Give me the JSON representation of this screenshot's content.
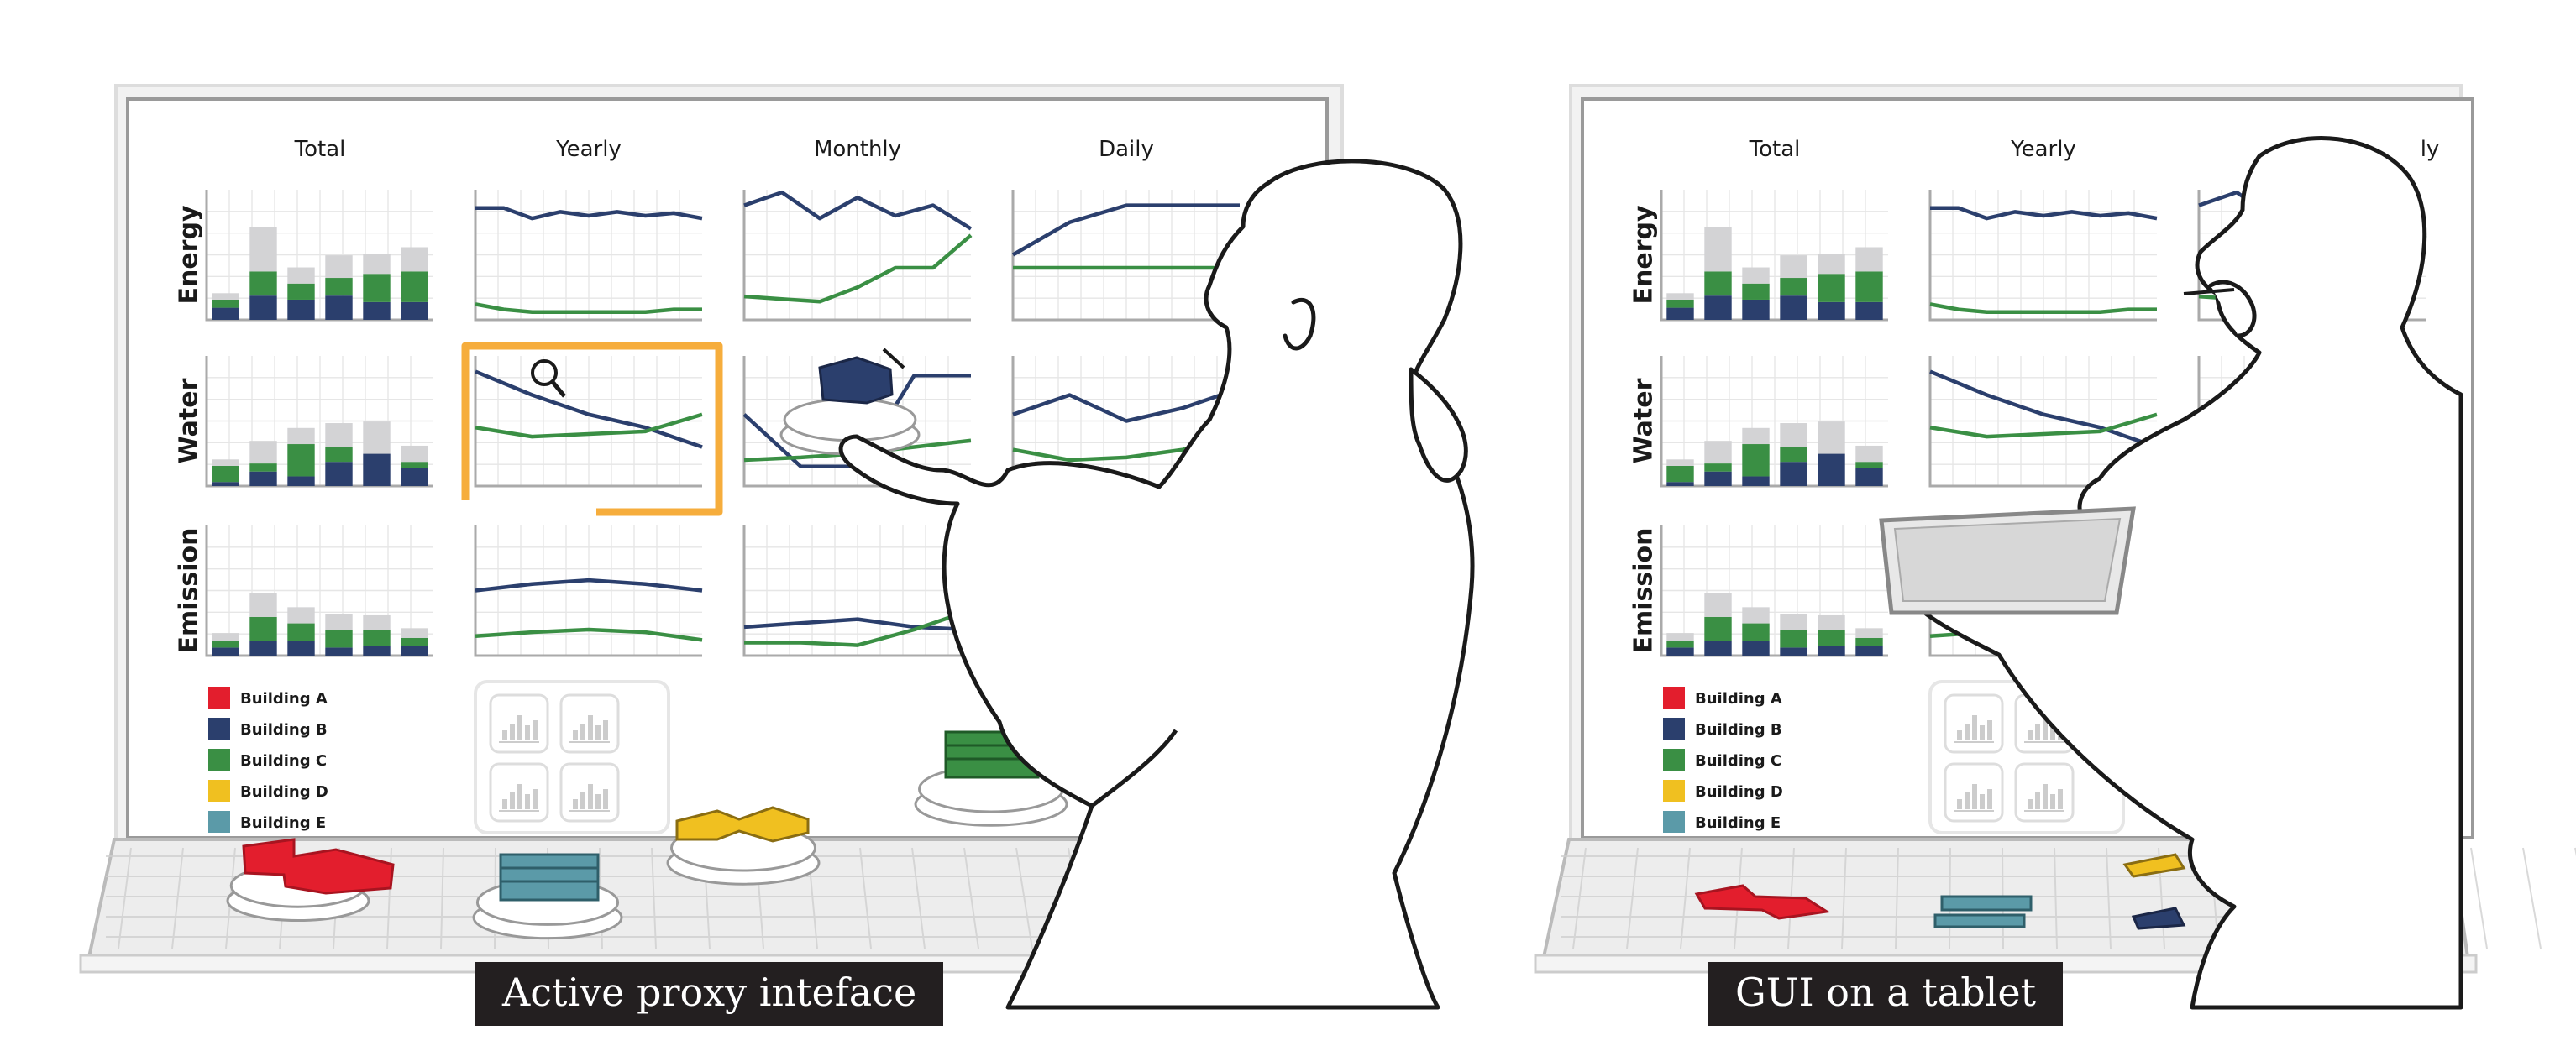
{
  "panels": [
    {
      "id": "left",
      "columns": [
        "Total",
        "Yearly",
        "Monthly",
        "Daily"
      ],
      "rows": [
        "Energy",
        "Water",
        "Emission"
      ],
      "legend": [
        "Building A",
        "Building B",
        "Building C",
        "Building D",
        "Building E"
      ],
      "caption": "Active proxy inteface"
    },
    {
      "id": "right",
      "columns": [
        "Total",
        "Yearly",
        "ly"
      ],
      "rows": [
        "Energy",
        "Water",
        "Emission"
      ],
      "legend": [
        "Building A",
        "Building B",
        "Building C",
        "Building D",
        "Building E"
      ],
      "caption": "GUI on a tablet"
    }
  ],
  "legend_colors": [
    "#e31e2d",
    "#2b3f6d",
    "#3a8f44",
    "#f0c020",
    "#5b9aa8"
  ],
  "colors": {
    "navy": "#2b3f6d",
    "green": "#3a8f44",
    "grey_bar": "#d3d3d5",
    "highlight": "#f6ad3c",
    "line": "#1a1a1a"
  },
  "chart_data": [
    {
      "type": "bar",
      "row": "Energy",
      "categories": [
        "1",
        "2",
        "3",
        "4",
        "5",
        "6"
      ],
      "series": [
        {
          "values": [
            0.15,
            0.3,
            0.25,
            0.3,
            0.22,
            0.22
          ]
        },
        {
          "values": [
            0.1,
            0.3,
            0.2,
            0.22,
            0.35,
            0.38
          ]
        },
        {
          "values": [
            0.08,
            0.55,
            0.2,
            0.28,
            0.25,
            0.3
          ]
        }
      ]
    },
    {
      "type": "bar",
      "row": "Water",
      "categories": [
        "1",
        "2",
        "3",
        "4",
        "5",
        "6"
      ],
      "series": [
        {
          "values": [
            0.05,
            0.18,
            0.12,
            0.3,
            0.4,
            0.22
          ]
        },
        {
          "values": [
            0.2,
            0.1,
            0.4,
            0.18,
            0.0,
            0.08
          ]
        },
        {
          "values": [
            0.08,
            0.28,
            0.2,
            0.3,
            0.4,
            0.2
          ]
        }
      ]
    },
    {
      "type": "bar",
      "row": "Emission",
      "categories": [
        "1",
        "2",
        "3",
        "4",
        "5",
        "6"
      ],
      "series": [
        {
          "values": [
            0.1,
            0.18,
            0.18,
            0.1,
            0.12,
            0.12
          ]
        },
        {
          "values": [
            0.08,
            0.3,
            0.22,
            0.22,
            0.2,
            0.1
          ]
        },
        {
          "values": [
            0.1,
            0.3,
            0.2,
            0.2,
            0.18,
            0.12
          ]
        }
      ]
    },
    {
      "type": "line",
      "row": "Energy",
      "column": "Yearly",
      "series": [
        {
          "values": [
            0.86,
            0.86,
            0.78,
            0.83,
            0.8,
            0.83,
            0.8,
            0.82,
            0.78
          ]
        },
        {
          "values": [
            0.12,
            0.08,
            0.06,
            0.06,
            0.06,
            0.06,
            0.06,
            0.08,
            0.08
          ]
        }
      ]
    },
    {
      "type": "line",
      "row": "Energy",
      "column": "Monthly",
      "series": [
        {
          "values": [
            0.88,
            0.98,
            0.78,
            0.94,
            0.8,
            0.88,
            0.7
          ]
        },
        {
          "values": [
            0.18,
            0.16,
            0.14,
            0.25,
            0.4,
            0.4,
            0.65
          ]
        }
      ]
    },
    {
      "type": "line",
      "row": "Energy",
      "column": "Daily",
      "series": [
        {
          "values": [
            0.5,
            0.75,
            0.88,
            0.88,
            0.88
          ]
        },
        {
          "values": [
            0.4,
            0.4,
            0.4,
            0.4,
            0.4
          ]
        }
      ]
    },
    {
      "type": "line",
      "row": "Water",
      "column": "Yearly",
      "series": [
        {
          "values": [
            0.88,
            0.7,
            0.55,
            0.45,
            0.3
          ]
        },
        {
          "values": [
            0.45,
            0.38,
            0.4,
            0.42,
            0.55
          ]
        }
      ]
    },
    {
      "type": "line",
      "row": "Water",
      "column": "Monthly",
      "series": [
        {
          "values": [
            0.55,
            0.15,
            0.15,
            0.85,
            0.85
          ]
        },
        {
          "values": [
            0.2,
            0.22,
            0.25,
            0.3,
            0.35
          ]
        }
      ]
    },
    {
      "type": "line",
      "row": "Water",
      "column": "Daily",
      "series": [
        {
          "values": [
            0.55,
            0.7,
            0.5,
            0.6,
            0.75
          ]
        },
        {
          "values": [
            0.28,
            0.2,
            0.22,
            0.28,
            0.4
          ]
        }
      ]
    },
    {
      "type": "line",
      "row": "Emission",
      "column": "Yearly",
      "series": [
        {
          "values": [
            0.5,
            0.55,
            0.58,
            0.55,
            0.5
          ]
        },
        {
          "values": [
            0.15,
            0.18,
            0.2,
            0.18,
            0.12
          ]
        }
      ]
    },
    {
      "type": "line",
      "row": "Emission",
      "column": "Monthly",
      "series": [
        {
          "values": [
            0.22,
            0.25,
            0.28,
            0.22,
            0.2
          ]
        },
        {
          "values": [
            0.1,
            0.1,
            0.08,
            0.2,
            0.35
          ]
        }
      ]
    }
  ]
}
